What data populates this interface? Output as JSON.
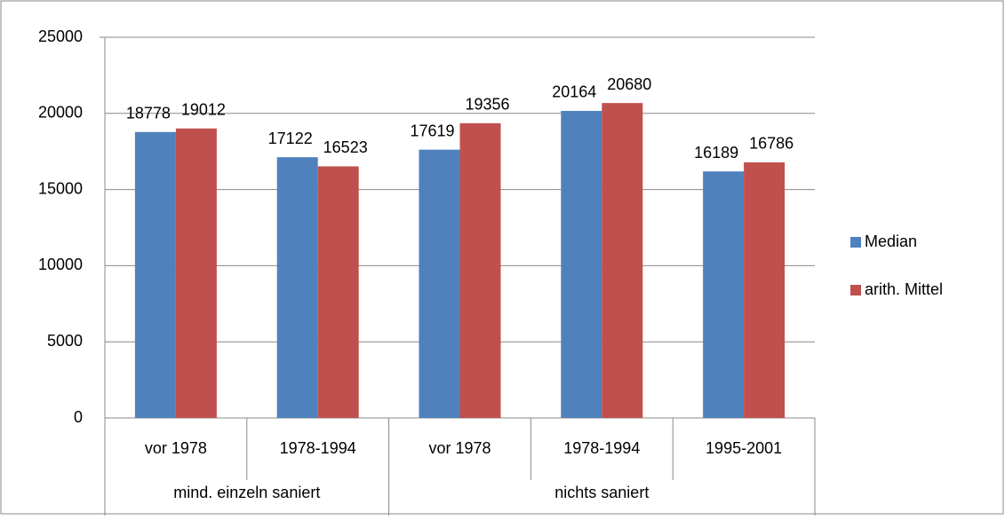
{
  "chart_data": {
    "type": "bar",
    "groups": [
      {
        "name": "mind. einzeln saniert",
        "categories": [
          "vor 1978",
          "1978-1994"
        ]
      },
      {
        "name": "nichts saniert",
        "categories": [
          "vor 1978",
          "1978-1994",
          "1995-2001"
        ]
      }
    ],
    "series": [
      {
        "name": "Median",
        "color": "#4f81bd",
        "values": [
          18778,
          17122,
          17619,
          20164,
          16189
        ]
      },
      {
        "name": "arith. Mittel",
        "color": "#c0504d",
        "values": [
          19012,
          16523,
          19356,
          20680,
          16786
        ]
      }
    ],
    "ylim": [
      0,
      25000
    ],
    "yticks": [
      0,
      5000,
      10000,
      15000,
      20000,
      25000
    ],
    "grid": true,
    "legend": "right"
  }
}
